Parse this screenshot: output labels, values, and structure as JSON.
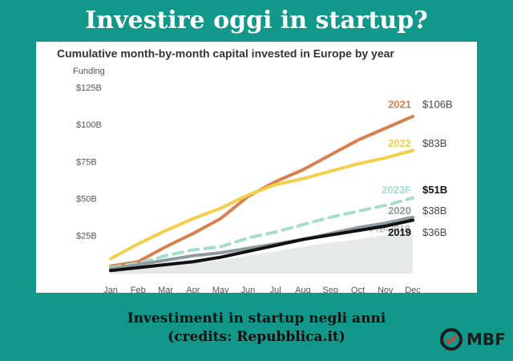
{
  "header": {
    "title": "Investire oggi in startup?"
  },
  "chart_data": {
    "type": "line",
    "title": "Cumulative month-by-month capital invested in Europe by year",
    "y_label": "Funding",
    "categories": [
      "Jan",
      "Feb",
      "Mar",
      "Apr",
      "May",
      "Jun",
      "Jul",
      "Aug",
      "Sep",
      "Oct",
      "Nov",
      "Dec"
    ],
    "ylim": [
      0,
      125
    ],
    "yticks": [
      {
        "value": 25,
        "label": "$25B"
      },
      {
        "value": 50,
        "label": "$50B"
      },
      {
        "value": 75,
        "label": "$75B"
      },
      {
        "value": 100,
        "label": "$100B"
      },
      {
        "value": 125,
        "label": "$125B"
      }
    ],
    "grid": false,
    "series": [
      {
        "name": "2021",
        "color": "#d9804f",
        "values": [
          5,
          8,
          18,
          27,
          37,
          52,
          62,
          70,
          80,
          90,
          98,
          106
        ],
        "value_labels": [
          null,
          null,
          null,
          null,
          null,
          null,
          null,
          null,
          null,
          null,
          null,
          "$106B"
        ]
      },
      {
        "name": "2022",
        "color": "#f3cf4c",
        "values": [
          10,
          20,
          29,
          37,
          44,
          53,
          60,
          64,
          69,
          74,
          78,
          83
        ],
        "value_labels": [
          null,
          null,
          null,
          null,
          null,
          null,
          null,
          null,
          null,
          null,
          null,
          "$83B"
        ]
      },
      {
        "name": "2023F",
        "color": "#a6dccd",
        "dashed": true,
        "values": [
          4,
          7,
          12,
          16,
          18,
          24,
          28,
          33,
          38,
          42,
          46,
          51
        ],
        "value_labels": [
          null,
          null,
          null,
          null,
          null,
          null,
          null,
          null,
          null,
          null,
          null,
          "$51B"
        ]
      },
      {
        "name": "2020",
        "color": "#8e9a9c",
        "values": [
          3,
          6,
          9,
          12,
          14,
          17,
          20,
          23,
          27,
          31,
          34,
          38
        ],
        "value_labels": [
          null,
          null,
          null,
          null,
          null,
          null,
          null,
          null,
          null,
          null,
          null,
          "$38B"
        ]
      },
      {
        "name": "2019",
        "color": "#111111",
        "values": [
          2,
          4,
          6,
          8,
          11,
          15,
          19,
          23,
          26,
          29,
          32,
          36
        ],
        "value_labels": [
          null,
          null,
          null,
          null,
          null,
          null,
          null,
          null,
          null,
          null,
          null,
          "$36B"
        ]
      },
      {
        "name": "Pre-2018",
        "color": "#e6e9e8",
        "type": "area",
        "values": [
          1,
          3,
          5,
          7,
          9,
          12,
          15,
          18,
          21,
          23,
          26,
          28
        ]
      }
    ]
  },
  "caption": {
    "line1": "Investimenti in startup negli anni",
    "line2": "(credits: Repubblica.it)"
  },
  "logo": {
    "text": "MBF"
  }
}
